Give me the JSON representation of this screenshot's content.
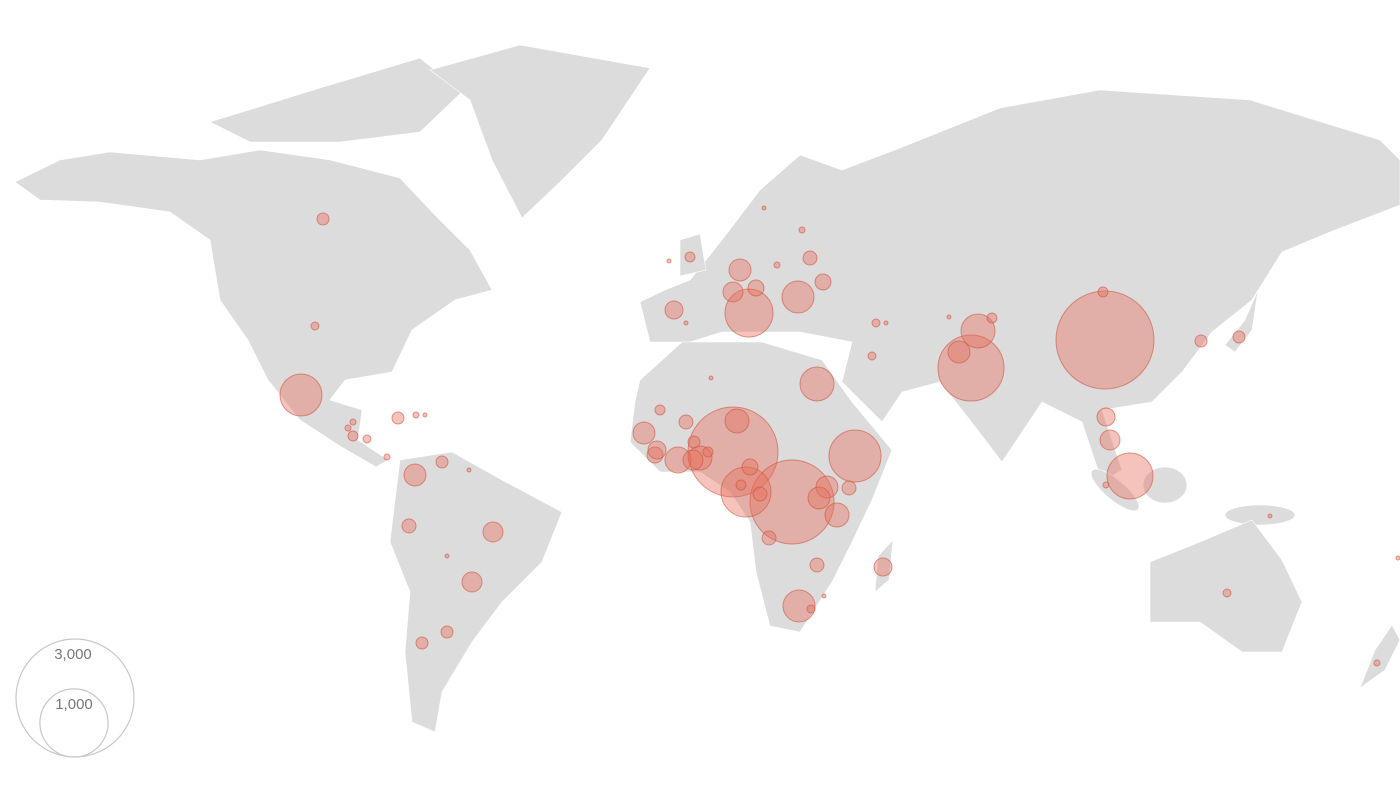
{
  "legend": {
    "sizes": [
      {
        "value": 3000,
        "label": "3,000"
      },
      {
        "value": 1000,
        "label": "1,000"
      }
    ]
  },
  "bubbles": {
    "values": [
      2069,
      939,
      1745,
      1520,
      583,
      456,
      380,
      539,
      496,
      249,
      249,
      221,
      221,
      104,
      124,
      124,
      104,
      104,
      124,
      146,
      104,
      55,
      70,
      104,
      70,
      55,
      55,
      104,
      86,
      86,
      42,
      31,
      31,
      31,
      70,
      70,
      86,
      42,
      42,
      42,
      42,
      21.5,
      31,
      31,
      21.5,
      13.8,
      31,
      13.8,
      7.8,
      3.4,
      21.5,
      13.8,
      7.8,
      7.8,
      7.8,
      42,
      21.5,
      31,
      21.5,
      55,
      86,
      42,
      86,
      21.5,
      3.4,
      3.4,
      7.8,
      7.8,
      21.5,
      31,
      3.4,
      3.4,
      13.8,
      3.4,
      7.8,
      3.4,
      13.8,
      7.8,
      3.4,
      13.8,
      3.4,
      3.4,
      3.4,
      3.4
    ]
  }
}
